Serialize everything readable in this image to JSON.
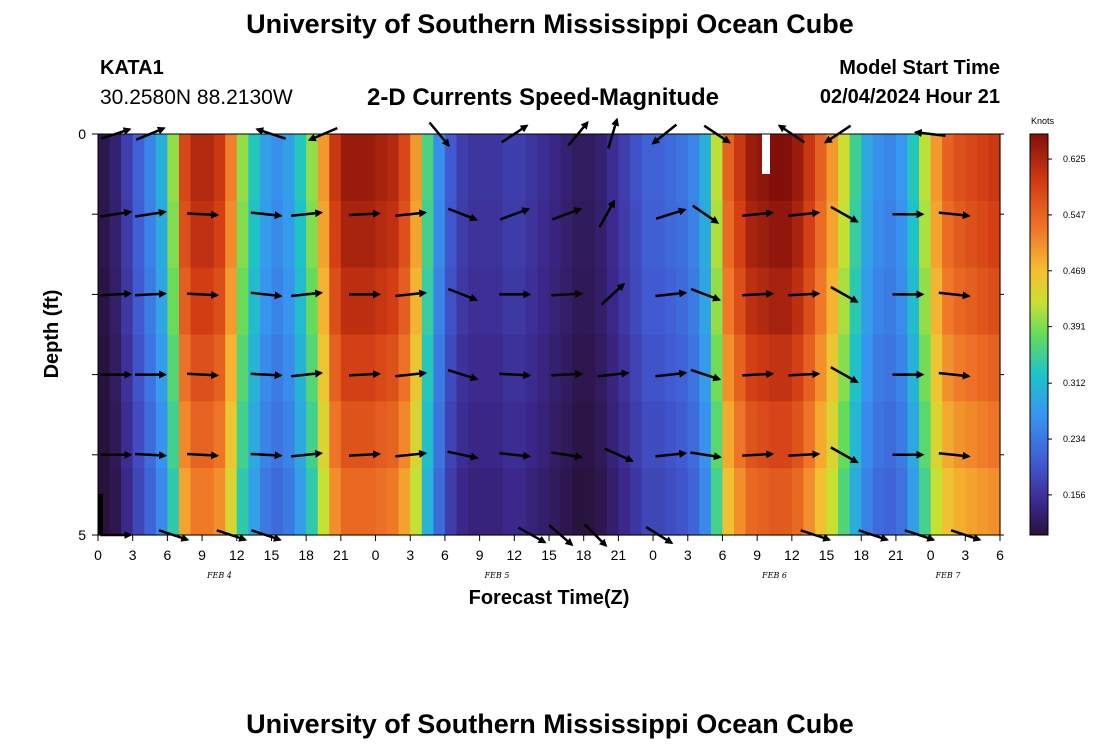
{
  "header": {
    "title": "University of Southern Mississippi Ocean Cube",
    "station": "KATA1",
    "coords": "30.2580N  88.2130W",
    "model_label": "Model Start Time",
    "model_date": "02/04/2024 Hour 21"
  },
  "footer": {
    "title": "University of Southern Mississippi Ocean Cube"
  },
  "chart_data": {
    "type": "heatmap",
    "title": "2-D Currents Speed-Magnitude",
    "xlabel": "Forecast Time(Z)",
    "ylabel": "Depth (ft)",
    "x_tick_labels": [
      "0",
      "3",
      "6",
      "9",
      "12",
      "15",
      "18",
      "21",
      "0",
      "3",
      "6",
      "9",
      "12",
      "15",
      "18",
      "21",
      "0",
      "3",
      "6",
      "9",
      "12",
      "15",
      "18",
      "21",
      "0",
      "3",
      "6"
    ],
    "date_labels": [
      {
        "label": "FEB 4",
        "hour": 10.5
      },
      {
        "label": "FEB 5",
        "hour": 34.5
      },
      {
        "label": "FEB 6",
        "hour": 58.5
      },
      {
        "label": "FEB 7",
        "hour": 73.5
      }
    ],
    "y_tick_labels": [
      "0",
      "5"
    ],
    "ylim": [
      0,
      5
    ],
    "xlim_hours": [
      0,
      78
    ],
    "colorbar": {
      "unit": "Knots",
      "ticks": [
        "0.625",
        "0.547",
        "0.469",
        "0.391",
        "0.312",
        "0.234",
        "0.156"
      ],
      "min": 0.1,
      "max": 0.66
    },
    "depth_levels_ft": [
      0,
      1,
      2,
      3,
      4,
      5
    ],
    "time_hours": [
      0,
      1,
      2,
      3,
      4,
      5,
      6,
      7,
      8,
      9,
      10,
      11,
      12,
      13,
      14,
      15,
      16,
      17,
      18,
      19,
      20,
      21,
      22,
      23,
      24,
      25,
      26,
      27,
      28,
      29,
      30,
      31,
      32,
      33,
      34,
      35,
      36,
      37,
      38,
      39,
      40,
      41,
      42,
      43,
      44,
      45,
      46,
      47,
      48,
      49,
      50,
      51,
      52,
      53,
      54,
      55,
      56,
      57,
      58,
      59,
      60,
      61,
      62,
      63,
      64,
      65,
      66,
      67,
      68,
      69,
      70,
      71,
      72,
      73,
      74,
      75,
      76,
      77
    ],
    "speed_surface": [
      0.11,
      0.13,
      0.17,
      0.21,
      0.25,
      0.3,
      0.4,
      0.58,
      0.62,
      0.62,
      0.6,
      0.52,
      0.4,
      0.33,
      0.28,
      0.26,
      0.28,
      0.33,
      0.4,
      0.5,
      0.6,
      0.64,
      0.64,
      0.64,
      0.63,
      0.62,
      0.58,
      0.5,
      0.36,
      0.26,
      0.2,
      0.17,
      0.16,
      0.16,
      0.16,
      0.17,
      0.17,
      0.16,
      0.15,
      0.14,
      0.13,
      0.12,
      0.12,
      0.13,
      0.15,
      0.17,
      0.19,
      0.21,
      0.21,
      0.22,
      0.23,
      0.25,
      0.3,
      0.42,
      0.55,
      0.6,
      0.64,
      0.65,
      0.66,
      0.66,
      0.64,
      0.6,
      0.55,
      0.5,
      0.43,
      0.35,
      0.29,
      0.26,
      0.25,
      0.27,
      0.33,
      0.42,
      0.5,
      0.55,
      0.57,
      0.58,
      0.59,
      0.6
    ],
    "depth_factor": [
      1.0,
      0.96,
      0.9,
      0.82,
      0.74,
      0.66
    ],
    "vectors": [
      {
        "t": 1.5,
        "d": 0,
        "u": 0.9,
        "v": 0.3
      },
      {
        "t": 4.5,
        "d": 0,
        "u": 0.85,
        "v": 0.35
      },
      {
        "t": 15,
        "d": 0,
        "u": -0.9,
        "v": 0.3
      },
      {
        "t": 19.5,
        "d": 0,
        "u": -0.7,
        "v": -0.3
      },
      {
        "t": 29.5,
        "d": 0,
        "u": 0.5,
        "v": -0.6
      },
      {
        "t": 36,
        "d": 0,
        "u": 0.6,
        "v": 0.4
      },
      {
        "t": 41.5,
        "d": 0,
        "u": 0.5,
        "v": 0.6
      },
      {
        "t": 44.5,
        "d": 0,
        "u": 0.3,
        "v": 1.0
      },
      {
        "t": 49,
        "d": 0,
        "u": -0.5,
        "v": -0.4
      },
      {
        "t": 53.5,
        "d": 0,
        "u": 0.6,
        "v": -0.4
      },
      {
        "t": 60,
        "d": 0,
        "u": -0.6,
        "v": 0.4
      },
      {
        "t": 64,
        "d": 0,
        "u": -0.6,
        "v": -0.4
      },
      {
        "t": 72,
        "d": 0,
        "u": -0.9,
        "v": 0.1
      },
      {
        "t": 1.5,
        "d": 1,
        "u": 0.95,
        "v": 0.15
      },
      {
        "t": 4.5,
        "d": 1,
        "u": 0.95,
        "v": 0.15
      },
      {
        "t": 9,
        "d": 1,
        "u": 0.95,
        "v": -0.05
      },
      {
        "t": 14.5,
        "d": 1,
        "u": 0.95,
        "v": -0.1
      },
      {
        "t": 18,
        "d": 1,
        "u": 0.95,
        "v": 0.1
      },
      {
        "t": 23,
        "d": 1,
        "u": 0.95,
        "v": 0.05
      },
      {
        "t": 27,
        "d": 1,
        "u": 0.95,
        "v": 0.1
      },
      {
        "t": 31.5,
        "d": 1,
        "u": 0.9,
        "v": -0.35
      },
      {
        "t": 36,
        "d": 1,
        "u": 0.95,
        "v": 0.35
      },
      {
        "t": 40.5,
        "d": 1,
        "u": 0.95,
        "v": 0.35
      },
      {
        "t": 44,
        "d": 1,
        "u": 0.5,
        "v": 0.9
      },
      {
        "t": 49.5,
        "d": 1,
        "u": 0.95,
        "v": 0.3
      },
      {
        "t": 52.5,
        "d": 1,
        "u": 0.8,
        "v": -0.55
      },
      {
        "t": 57,
        "d": 1,
        "u": 0.95,
        "v": 0.1
      },
      {
        "t": 61,
        "d": 1,
        "u": 0.95,
        "v": 0.1
      },
      {
        "t": 64.5,
        "d": 1,
        "u": 0.8,
        "v": -0.45
      },
      {
        "t": 70,
        "d": 1,
        "u": 0.95,
        "v": 0.0
      },
      {
        "t": 74,
        "d": 1,
        "u": 0.95,
        "v": -0.1
      },
      {
        "t": 1.5,
        "d": 2,
        "u": 0.95,
        "v": 0.05
      },
      {
        "t": 4.5,
        "d": 2,
        "u": 0.95,
        "v": 0.05
      },
      {
        "t": 9,
        "d": 2,
        "u": 0.95,
        "v": -0.05
      },
      {
        "t": 14.5,
        "d": 2,
        "u": 0.95,
        "v": -0.1
      },
      {
        "t": 18,
        "d": 2,
        "u": 0.95,
        "v": 0.1
      },
      {
        "t": 23,
        "d": 2,
        "u": 0.95,
        "v": 0.0
      },
      {
        "t": 27,
        "d": 2,
        "u": 0.95,
        "v": 0.1
      },
      {
        "t": 31.5,
        "d": 2,
        "u": 0.9,
        "v": -0.35
      },
      {
        "t": 36,
        "d": 2,
        "u": 0.95,
        "v": 0.0
      },
      {
        "t": 40.5,
        "d": 2,
        "u": 0.95,
        "v": 0.05
      },
      {
        "t": 44.5,
        "d": 2,
        "u": 0.7,
        "v": 0.65
      },
      {
        "t": 49.5,
        "d": 2,
        "u": 0.95,
        "v": 0.1
      },
      {
        "t": 52.5,
        "d": 2,
        "u": 0.9,
        "v": -0.35
      },
      {
        "t": 57,
        "d": 2,
        "u": 0.95,
        "v": 0.05
      },
      {
        "t": 61,
        "d": 2,
        "u": 0.95,
        "v": 0.05
      },
      {
        "t": 64.5,
        "d": 2,
        "u": 0.8,
        "v": -0.45
      },
      {
        "t": 70,
        "d": 2,
        "u": 0.95,
        "v": 0.0
      },
      {
        "t": 74,
        "d": 2,
        "u": 0.95,
        "v": -0.1
      },
      {
        "t": 1.5,
        "d": 3,
        "u": 0.95,
        "v": 0.0
      },
      {
        "t": 4.5,
        "d": 3,
        "u": 0.95,
        "v": 0.0
      },
      {
        "t": 9,
        "d": 3,
        "u": 0.95,
        "v": -0.05
      },
      {
        "t": 14.5,
        "d": 3,
        "u": 0.95,
        "v": -0.05
      },
      {
        "t": 18,
        "d": 3,
        "u": 0.95,
        "v": 0.1
      },
      {
        "t": 23,
        "d": 3,
        "u": 0.95,
        "v": 0.05
      },
      {
        "t": 27,
        "d": 3,
        "u": 0.95,
        "v": 0.1
      },
      {
        "t": 31.5,
        "d": 3,
        "u": 0.95,
        "v": -0.3
      },
      {
        "t": 36,
        "d": 3,
        "u": 0.95,
        "v": -0.05
      },
      {
        "t": 40.5,
        "d": 3,
        "u": 0.95,
        "v": 0.05
      },
      {
        "t": 44.5,
        "d": 3,
        "u": 0.95,
        "v": 0.1
      },
      {
        "t": 49.5,
        "d": 3,
        "u": 0.95,
        "v": 0.1
      },
      {
        "t": 52.5,
        "d": 3,
        "u": 0.9,
        "v": -0.3
      },
      {
        "t": 57,
        "d": 3,
        "u": 0.95,
        "v": 0.05
      },
      {
        "t": 61,
        "d": 3,
        "u": 0.95,
        "v": 0.05
      },
      {
        "t": 64.5,
        "d": 3,
        "u": 0.8,
        "v": -0.45
      },
      {
        "t": 70,
        "d": 3,
        "u": 0.95,
        "v": 0.0
      },
      {
        "t": 74,
        "d": 3,
        "u": 0.95,
        "v": -0.1
      },
      {
        "t": 1.5,
        "d": 4,
        "u": 0.95,
        "v": 0.0
      },
      {
        "t": 4.5,
        "d": 4,
        "u": 0.95,
        "v": -0.05
      },
      {
        "t": 9,
        "d": 4,
        "u": 0.95,
        "v": -0.05
      },
      {
        "t": 14.5,
        "d": 4,
        "u": 0.95,
        "v": -0.05
      },
      {
        "t": 18,
        "d": 4,
        "u": 0.95,
        "v": 0.1
      },
      {
        "t": 23,
        "d": 4,
        "u": 0.95,
        "v": 0.05
      },
      {
        "t": 27,
        "d": 4,
        "u": 0.95,
        "v": 0.1
      },
      {
        "t": 31.5,
        "d": 4,
        "u": 0.95,
        "v": -0.2
      },
      {
        "t": 36,
        "d": 4,
        "u": 0.95,
        "v": -0.1
      },
      {
        "t": 40.5,
        "d": 4,
        "u": 0.95,
        "v": -0.15
      },
      {
        "t": 45,
        "d": 4,
        "u": 0.9,
        "v": -0.4
      },
      {
        "t": 49.5,
        "d": 4,
        "u": 0.95,
        "v": 0.1
      },
      {
        "t": 52.5,
        "d": 4,
        "u": 0.95,
        "v": -0.15
      },
      {
        "t": 57,
        "d": 4,
        "u": 0.95,
        "v": 0.05
      },
      {
        "t": 61,
        "d": 4,
        "u": 0.95,
        "v": 0.05
      },
      {
        "t": 64.5,
        "d": 4,
        "u": 0.8,
        "v": -0.45
      },
      {
        "t": 70,
        "d": 4,
        "u": 0.95,
        "v": 0.0
      },
      {
        "t": 74,
        "d": 4,
        "u": 0.95,
        "v": -0.1
      },
      {
        "t": 1.5,
        "d": 5,
        "u": 0.95,
        "v": 0.0
      },
      {
        "t": 6.5,
        "d": 5,
        "u": 0.9,
        "v": -0.3
      },
      {
        "t": 11.5,
        "d": 5,
        "u": 0.9,
        "v": -0.3
      },
      {
        "t": 14.5,
        "d": 5,
        "u": 0.9,
        "v": -0.3
      },
      {
        "t": 37.5,
        "d": 5,
        "u": 0.9,
        "v": -0.5
      },
      {
        "t": 40,
        "d": 5,
        "u": 0.75,
        "v": -0.65
      },
      {
        "t": 43,
        "d": 5,
        "u": 0.7,
        "v": -0.7
      },
      {
        "t": 48.5,
        "d": 5,
        "u": 0.8,
        "v": -0.5
      },
      {
        "t": 62,
        "d": 5,
        "u": 0.9,
        "v": -0.3
      },
      {
        "t": 67,
        "d": 5,
        "u": 0.9,
        "v": -0.3
      },
      {
        "t": 71,
        "d": 5,
        "u": 0.9,
        "v": -0.3
      },
      {
        "t": 75,
        "d": 5,
        "u": 0.9,
        "v": -0.3
      }
    ]
  }
}
